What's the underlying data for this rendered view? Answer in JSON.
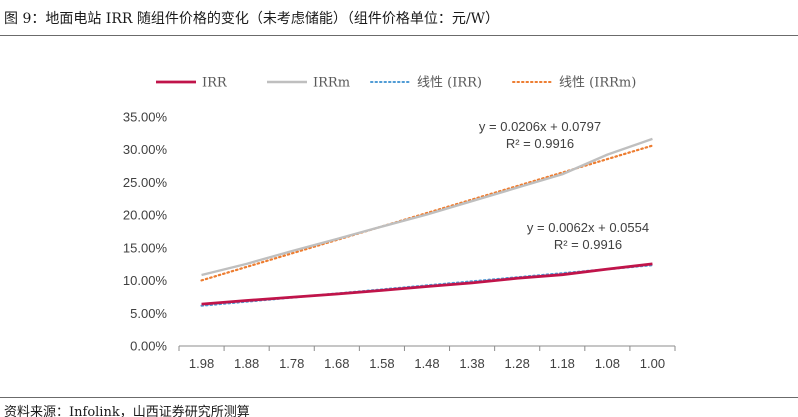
{
  "header": {
    "title": "图 9：地面电站 IRR 随组件价格的变化（未考虑储能）（组件价格单位：元/W）"
  },
  "footer": {
    "source": "资料来源：Infolink，山西证券研究所测算"
  },
  "chart_data": {
    "type": "line",
    "x": [
      "1.98",
      "1.88",
      "1.78",
      "1.68",
      "1.58",
      "1.48",
      "1.38",
      "1.28",
      "1.18",
      "1.08",
      "1.00"
    ],
    "series": [
      {
        "name": "IRR",
        "color": "#c0144a",
        "style": "solid",
        "values": [
          0.064,
          0.0695,
          0.0745,
          0.0795,
          0.085,
          0.091,
          0.0965,
          0.1035,
          0.109,
          0.1175,
          0.1255
        ]
      },
      {
        "name": "IRRm",
        "color": "#bfbfbf",
        "style": "solid",
        "values": [
          0.1085,
          0.1255,
          0.145,
          0.1635,
          0.1825,
          0.201,
          0.2215,
          0.242,
          0.2625,
          0.2925,
          0.3165
        ]
      },
      {
        "name": "线性 (IRR)",
        "color": "#4f9bd5",
        "style": "dotted",
        "trend_of": "IRR",
        "slope": 0.0062,
        "intercept": 0.0554
      },
      {
        "name": "线性 (IRRm)",
        "color": "#ed7d31",
        "style": "dotted",
        "trend_of": "IRRm",
        "slope": 0.0206,
        "intercept": 0.0797
      }
    ],
    "annotations": [
      {
        "of": "IRRm",
        "equation": "y = 0.0206x + 0.0797",
        "r2": "R² = 0.9916"
      },
      {
        "of": "IRR",
        "equation": "y = 0.0062x + 0.0554",
        "r2": "R² = 0.9916"
      }
    ],
    "yticks": [
      "0.00%",
      "5.00%",
      "10.00%",
      "15.00%",
      "20.00%",
      "25.00%",
      "30.00%",
      "35.00%"
    ],
    "ylim": [
      0,
      0.35
    ],
    "grid": false,
    "legend": "top"
  }
}
